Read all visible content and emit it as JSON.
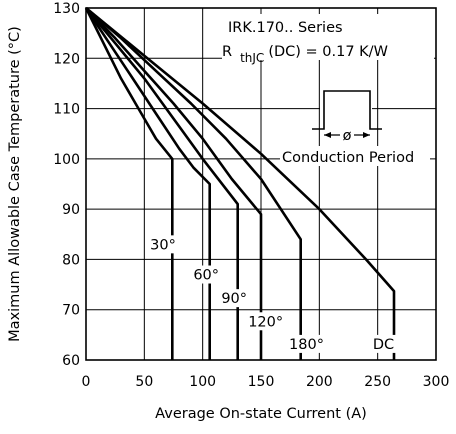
{
  "chart_data": {
    "type": "line",
    "title": "",
    "xlabel": "Average On-state Current (A)",
    "ylabel": "Maximum Allowable Case Temperature (°C)",
    "xlim": [
      0,
      300
    ],
    "ylim": [
      60,
      130
    ],
    "x_ticks": [
      "0",
      "50",
      "100",
      "150",
      "200",
      "250",
      "300"
    ],
    "y_ticks": [
      "60",
      "70",
      "80",
      "90",
      "100",
      "110",
      "120",
      "130"
    ],
    "grid": true,
    "annotations": {
      "series_title": "IRK.170.. Series",
      "rth_main": "R",
      "rth_sub": "thJC",
      "rth_rest": "(DC) = 0.17 K/W",
      "period_symbol": "ø",
      "period_label": "Conduction Period"
    },
    "series": [
      {
        "name": "30°",
        "label_at": [
          66,
          83
        ],
        "points": [
          [
            0,
            130
          ],
          [
            15,
            123
          ],
          [
            30,
            116
          ],
          [
            45,
            110
          ],
          [
            60,
            104
          ],
          [
            74,
            100
          ],
          [
            74,
            60
          ]
        ]
      },
      {
        "name": "60°",
        "label_at": [
          103,
          77
        ],
        "points": [
          [
            0,
            130
          ],
          [
            20,
            123
          ],
          [
            40,
            116
          ],
          [
            60,
            109
          ],
          [
            80,
            102
          ],
          [
            92,
            98.3
          ],
          [
            106,
            95
          ],
          [
            106,
            60
          ]
        ]
      },
      {
        "name": "90°",
        "label_at": [
          127,
          72.3
        ],
        "points": [
          [
            0,
            130
          ],
          [
            25,
            123
          ],
          [
            50,
            116
          ],
          [
            75,
            108
          ],
          [
            100,
            100
          ],
          [
            130,
            91
          ],
          [
            130,
            60
          ]
        ]
      },
      {
        "name": "120°",
        "label_at": [
          154,
          67.7
        ],
        "points": [
          [
            0,
            130
          ],
          [
            25,
            124
          ],
          [
            50,
            117.5
          ],
          [
            75,
            111
          ],
          [
            100,
            104
          ],
          [
            125,
            96
          ],
          [
            150,
            89
          ],
          [
            150,
            60
          ]
        ]
      },
      {
        "name": "180°",
        "label_at": [
          189,
          63.2
        ],
        "points": [
          [
            0,
            130
          ],
          [
            30,
            124
          ],
          [
            60,
            117.5
          ],
          [
            90,
            111
          ],
          [
            120,
            104
          ],
          [
            150,
            96
          ],
          [
            184,
            84
          ],
          [
            184,
            60
          ]
        ]
      },
      {
        "name": "DC",
        "label_at": [
          255,
          63.2
        ],
        "points": [
          [
            0,
            130
          ],
          [
            50,
            120.5
          ],
          [
            100,
            111
          ],
          [
            150,
            101
          ],
          [
            200,
            90
          ],
          [
            240,
            80
          ],
          [
            264,
            73.7
          ],
          [
            264,
            60
          ]
        ]
      }
    ]
  }
}
